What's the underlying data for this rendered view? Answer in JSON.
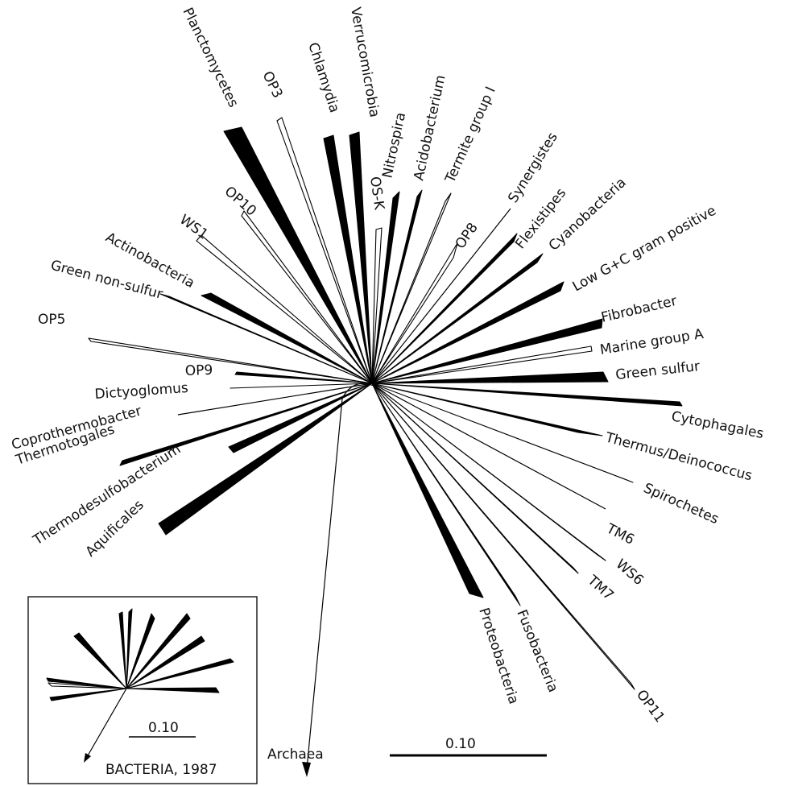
{
  "tree": {
    "groups": [
      {
        "label": "Planctomycetes",
        "style": "filled"
      },
      {
        "label": "OP3",
        "style": "open"
      },
      {
        "label": "Chlamydia",
        "style": "filled"
      },
      {
        "label": "Verrucomicrobia",
        "style": "filled"
      },
      {
        "label": "OS-K",
        "style": "open"
      },
      {
        "label": "Nitrospira",
        "style": "filled"
      },
      {
        "label": "Acidobacterium",
        "style": "filled"
      },
      {
        "label": "Termite group I",
        "style": "open"
      },
      {
        "label": "Synergistes",
        "style": "line"
      },
      {
        "label": "OP8",
        "style": "open"
      },
      {
        "label": "Flexistipes",
        "style": "filled"
      },
      {
        "label": "Cyanobacteria",
        "style": "filled"
      },
      {
        "label": "Low G+C gram positive",
        "style": "filled"
      },
      {
        "label": "Fibrobacter",
        "style": "filled"
      },
      {
        "label": "Marine group A",
        "style": "open"
      },
      {
        "label": "Green sulfur",
        "style": "filled"
      },
      {
        "label": "Cytophagales",
        "style": "filled"
      },
      {
        "label": "Thermus/Deinococcus",
        "style": "filled"
      },
      {
        "label": "Spirochetes",
        "style": "filled"
      },
      {
        "label": "TM6",
        "style": "line"
      },
      {
        "label": "WS6",
        "style": "open"
      },
      {
        "label": "TM7",
        "style": "open"
      },
      {
        "label": "OP11",
        "style": "open"
      },
      {
        "label": "Fusobacteria",
        "style": "filled"
      },
      {
        "label": "Proteobacteria",
        "style": "filled"
      },
      {
        "label": "Aquificales",
        "style": "filled"
      },
      {
        "label": "Thermodesulfobacterium",
        "style": "filled"
      },
      {
        "label": "Thermotogales",
        "style": "filled"
      },
      {
        "label": "Coprothermobacter",
        "style": "line"
      },
      {
        "label": "Dictyoglomus",
        "style": "filled"
      },
      {
        "label": "OP9",
        "style": "filled"
      },
      {
        "label": "OP5",
        "style": "open"
      },
      {
        "label": "Green non-sulfur",
        "style": "filled"
      },
      {
        "label": "Actinobacteria",
        "style": "filled"
      },
      {
        "label": "WS1",
        "style": "open"
      },
      {
        "label": "OP10",
        "style": "open"
      }
    ],
    "outgroup": "Archaea",
    "scale_label": "0.10"
  },
  "inset": {
    "title": "BACTERIA, 1987",
    "scale_label": "0.10"
  }
}
